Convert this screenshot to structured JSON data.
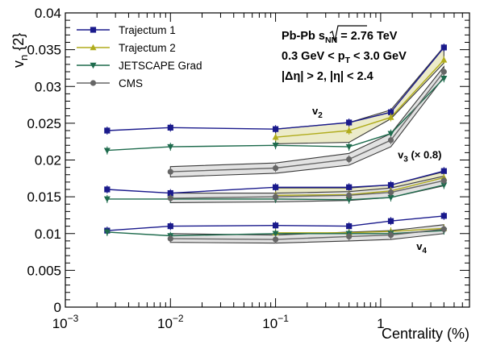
{
  "chart_data": {
    "type": "line",
    "xlabel": "Centrality (%)",
    "ylabel": "v",
    "ylabel_sub": "n",
    "ylabel_suffix": "{2}",
    "xscale": "log",
    "xlim": [
      0.001,
      7
    ],
    "ylim": [
      0,
      0.04
    ],
    "x_ticks": [
      {
        "value": 0.001,
        "base": "10",
        "exp": "−3"
      },
      {
        "value": 0.01,
        "base": "10",
        "exp": "−2"
      },
      {
        "value": 0.1,
        "base": "10",
        "exp": "−1"
      },
      {
        "value": 1,
        "base": "1",
        "exp": ""
      }
    ],
    "y_ticks": [
      {
        "value": 0,
        "label": "0"
      },
      {
        "value": 0.005,
        "label": "0.005"
      },
      {
        "value": 0.01,
        "label": "0.01"
      },
      {
        "value": 0.015,
        "label": "0.015"
      },
      {
        "value": 0.02,
        "label": "0.02"
      },
      {
        "value": 0.025,
        "label": "0.025"
      },
      {
        "value": 0.03,
        "label": "0.03"
      },
      {
        "value": 0.035,
        "label": "0.035"
      },
      {
        "value": 0.04,
        "label": "0.04"
      }
    ],
    "legend_position": "top-left",
    "info_lines": [
      {
        "a": "Pb-Pb  ",
        "b": "s",
        "bsub": "NN",
        "c": " = 2.76 TeV",
        "sqrt": true
      },
      {
        "a": "0.3 GeV < p",
        "bsub": "T",
        "c": " < 3.0 GeV",
        "sqrt": false
      },
      {
        "a": "|Δη| > 2, |η| < 2.4",
        "sqrt": false
      }
    ],
    "harmonic_labels": [
      {
        "name": "v2",
        "base": "v",
        "sub": "2",
        "suffix": "",
        "x": 0.25,
        "y": 0.0262
      },
      {
        "name": "v3",
        "base": "v",
        "sub": "3",
        "suffix": " (× 0.8)",
        "x": 2.35,
        "y": 0.0202
      },
      {
        "name": "v4",
        "base": "v",
        "sub": "4",
        "suffix": "",
        "x": 2.45,
        "y": 0.0078
      }
    ],
    "bands": [
      {
        "name": "v2-trajectum-band",
        "color": "#ecebc9",
        "x": [
          0.1,
          0.5,
          1.25,
          4.0
        ],
        "upper": [
          0.0242,
          0.0251,
          0.0268,
          0.0354
        ],
        "lower": [
          0.0222,
          0.0224,
          0.0256,
          0.0332
        ]
      },
      {
        "name": "v2-cms-band",
        "color": "#e2e2e2",
        "x": [
          0.01,
          0.1,
          0.5,
          1.25,
          4.0
        ],
        "upper": [
          0.0191,
          0.0196,
          0.0209,
          0.0236,
          0.0327
        ],
        "lower": [
          0.0177,
          0.0182,
          0.0193,
          0.0218,
          0.0313
        ]
      },
      {
        "name": "v3-trajectum-band",
        "color": "#ecebc9",
        "x": [
          0.1,
          0.5,
          1.25,
          4.0
        ],
        "upper": [
          0.0162,
          0.0162,
          0.0166,
          0.0184
        ],
        "lower": [
          0.0147,
          0.0148,
          0.015,
          0.0168
        ]
      },
      {
        "name": "v3-cms-band",
        "color": "#e2e2e2",
        "x": [
          0.01,
          0.1,
          0.5,
          1.25,
          4.0
        ],
        "upper": [
          0.0155,
          0.0155,
          0.0157,
          0.0162,
          0.0178
        ],
        "lower": [
          0.0142,
          0.0143,
          0.0145,
          0.0149,
          0.0165
        ]
      },
      {
        "name": "v4-cms-band",
        "color": "#e2e2e2",
        "x": [
          0.01,
          0.1,
          0.5,
          1.25,
          4.0
        ],
        "upper": [
          0.01,
          0.0098,
          0.0102,
          0.0104,
          0.0112
        ],
        "lower": [
          0.0088,
          0.0087,
          0.009,
          0.0092,
          0.01
        ]
      }
    ],
    "series": [
      {
        "name": "Trajectum 1",
        "color": "#1a1a8c",
        "marker": "square",
        "x": [
          0.0025,
          0.01,
          0.1,
          0.5,
          1.25,
          4.0
        ],
        "values": [
          0.024,
          0.0244,
          0.0242,
          0.0251,
          0.0265,
          0.0353
        ],
        "group": "v2"
      },
      {
        "name": "Trajectum 2",
        "color": "#b0ac1c",
        "marker": "triangle-up",
        "x": [
          0.1,
          0.5,
          1.25,
          4.0
        ],
        "values": [
          0.0231,
          0.024,
          0.0258,
          0.0336
        ],
        "group": "v2"
      },
      {
        "name": "JETSCAPE Grad",
        "color": "#1e6b4d",
        "marker": "triangle-down",
        "x": [
          0.0025,
          0.01,
          0.1,
          0.5,
          1.25,
          4.0
        ],
        "values": [
          0.0213,
          0.0218,
          0.022,
          0.0218,
          0.0236,
          0.0311
        ],
        "group": "v2"
      },
      {
        "name": "CMS",
        "color": "#666666",
        "marker": "circle",
        "x": [
          0.01,
          0.1,
          0.5,
          1.25,
          4.0
        ],
        "values": [
          0.0184,
          0.0189,
          0.0201,
          0.0227,
          0.032
        ],
        "group": "v2"
      },
      {
        "name": "Trajectum 1",
        "color": "#1a1a8c",
        "marker": "square",
        "x": [
          0.0025,
          0.01,
          0.1,
          0.5,
          1.25,
          4.0
        ],
        "values": [
          0.016,
          0.0155,
          0.0163,
          0.0163,
          0.0166,
          0.0185
        ],
        "group": "v3"
      },
      {
        "name": "Trajectum 2",
        "color": "#b0ac1c",
        "marker": "triangle-up",
        "x": [
          0.1,
          0.5,
          1.25,
          4.0
        ],
        "values": [
          0.0152,
          0.0153,
          0.0158,
          0.0176
        ],
        "group": "v3"
      },
      {
        "name": "JETSCAPE Grad",
        "color": "#1e6b4d",
        "marker": "triangle-down",
        "x": [
          0.0025,
          0.01,
          0.1,
          0.5,
          1.25,
          4.0
        ],
        "values": [
          0.0147,
          0.0147,
          0.0147,
          0.0146,
          0.0149,
          0.0166
        ],
        "group": "v3"
      },
      {
        "name": "CMS",
        "color": "#666666",
        "marker": "circle",
        "x": [
          0.01,
          0.1,
          0.5,
          1.25,
          4.0
        ],
        "values": [
          0.0148,
          0.015,
          0.0152,
          0.0156,
          0.0172
        ],
        "group": "v3"
      },
      {
        "name": "Trajectum 1",
        "color": "#1a1a8c",
        "marker": "square",
        "x": [
          0.0025,
          0.01,
          0.1,
          0.5,
          1.25,
          4.0
        ],
        "values": [
          0.0104,
          0.011,
          0.0111,
          0.011,
          0.0117,
          0.0124
        ],
        "group": "v4"
      },
      {
        "name": "Trajectum 2",
        "color": "#b0ac1c",
        "marker": "triangle-up",
        "x": [
          0.1,
          0.5,
          1.25,
          4.0
        ],
        "values": [
          0.0101,
          0.0101,
          0.0103,
          0.0107
        ],
        "group": "v4"
      },
      {
        "name": "JETSCAPE Grad",
        "color": "#1e6b4d",
        "marker": "triangle-down",
        "x": [
          0.0025,
          0.01,
          0.1,
          0.5,
          1.25,
          4.0
        ],
        "values": [
          0.0102,
          0.0097,
          0.01,
          0.01,
          0.01,
          0.0104
        ],
        "group": "v4"
      },
      {
        "name": "CMS",
        "color": "#666666",
        "marker": "circle",
        "x": [
          0.01,
          0.1,
          0.5,
          1.25,
          4.0
        ],
        "values": [
          0.0093,
          0.0092,
          0.0096,
          0.0098,
          0.0106
        ],
        "group": "v4"
      }
    ],
    "legend": [
      {
        "name": "Trajectum 1",
        "color": "#1a1a8c",
        "marker": "square"
      },
      {
        "name": "Trajectum 2",
        "color": "#b0ac1c",
        "marker": "triangle-up"
      },
      {
        "name": "JETSCAPE Grad",
        "color": "#1e6b4d",
        "marker": "triangle-down"
      },
      {
        "name": "CMS",
        "color": "#666666",
        "marker": "circle"
      }
    ]
  }
}
